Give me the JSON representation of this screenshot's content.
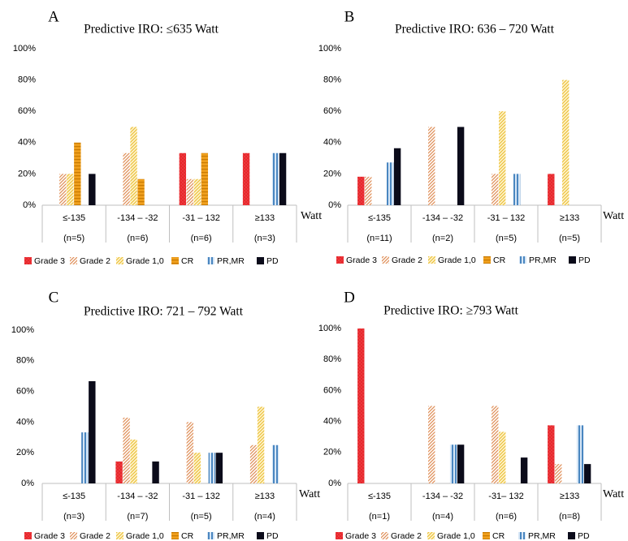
{
  "colors": {
    "grade3": "#e8262b",
    "grade2": "#e0905a",
    "grade10": "#ecc23c",
    "cr": "#f0a01e",
    "prmr": "#4a86c0",
    "pd": "#0b0b1a",
    "axis": "#bfbfbf",
    "text": "#000000"
  },
  "chart_data": [
    {
      "type": "bar",
      "panel_letter": "A",
      "title": "Predictive IRO: ≤635 Watt",
      "xunit": "Watt",
      "yticks": [
        "0%",
        "20%",
        "40%",
        "60%",
        "80%",
        "100%"
      ],
      "ylim": [
        0,
        100
      ],
      "categories": [
        "≤-135",
        "-134 – -32",
        "-31 – 132",
        "≥133"
      ],
      "n_labels": [
        "(n=5)",
        "(n=6)",
        "(n=6)",
        "(n=3)"
      ],
      "series": [
        {
          "name": "Grade 3",
          "values": [
            0,
            0,
            33.3,
            33.3
          ]
        },
        {
          "name": "Grade 2",
          "values": [
            20,
            33.3,
            16.7,
            0
          ]
        },
        {
          "name": "Grade 1,0",
          "values": [
            20,
            50,
            16.7,
            0
          ]
        },
        {
          "name": "CR",
          "values": [
            40,
            16.7,
            33.3,
            0
          ]
        },
        {
          "name": "PR,MR",
          "values": [
            0,
            0,
            0,
            33.3
          ]
        },
        {
          "name": "PD",
          "values": [
            20,
            0,
            0,
            33.3
          ]
        }
      ]
    },
    {
      "type": "bar",
      "panel_letter": "B",
      "title": "Predictive IRO: 636 – 720 Watt",
      "xunit": "Watt",
      "yticks": [
        "0%",
        "20%",
        "40%",
        "60%",
        "80%",
        "100%"
      ],
      "ylim": [
        0,
        100
      ],
      "categories": [
        "≤-135",
        "-134 – -32",
        "-31 – 132",
        "≥133"
      ],
      "n_labels": [
        "(n=11)",
        "(n=2)",
        "(n=5)",
        "(n=5)"
      ],
      "series": [
        {
          "name": "Grade 3",
          "values": [
            18.2,
            0,
            0,
            20
          ]
        },
        {
          "name": "Grade 2",
          "values": [
            18.2,
            50,
            20,
            0
          ]
        },
        {
          "name": "Grade 1,0",
          "values": [
            0,
            0,
            60,
            80
          ]
        },
        {
          "name": "CR",
          "values": [
            0,
            0,
            0,
            0
          ]
        },
        {
          "name": "PR,MR",
          "values": [
            27.3,
            0,
            20,
            0
          ]
        },
        {
          "name": "PD",
          "values": [
            36.4,
            50,
            0,
            0
          ]
        }
      ]
    },
    {
      "type": "bar",
      "panel_letter": "C",
      "title": "Predictive IRO: 721 – 792 Watt",
      "xunit": "Watt",
      "yticks": [
        "0%",
        "20%",
        "40%",
        "60%",
        "80%",
        "100%"
      ],
      "ylim": [
        0,
        100
      ],
      "categories": [
        "≤-135",
        "-134 – -32",
        "-31 – 132",
        "≥133"
      ],
      "n_labels": [
        "(n=3)",
        "(n=7)",
        "(n=5)",
        "(n=4)"
      ],
      "series": [
        {
          "name": "Grade 3",
          "values": [
            0,
            14.3,
            0,
            0
          ]
        },
        {
          "name": "Grade 2",
          "values": [
            0,
            42.9,
            40,
            25
          ]
        },
        {
          "name": "Grade 1,0",
          "values": [
            0,
            28.6,
            20,
            50
          ]
        },
        {
          "name": "CR",
          "values": [
            0,
            0,
            0,
            0
          ]
        },
        {
          "name": "PR,MR",
          "values": [
            33.3,
            0,
            20,
            25
          ]
        },
        {
          "name": "PD",
          "values": [
            66.7,
            14.3,
            20,
            0
          ]
        }
      ]
    },
    {
      "type": "bar",
      "panel_letter": "D",
      "title": "Predictive IRO: ≥793 Watt",
      "xunit": "Watt",
      "yticks": [
        "0%",
        "20%",
        "40%",
        "60%",
        "80%",
        "100%"
      ],
      "ylim": [
        0,
        100
      ],
      "categories": [
        "≤-135",
        "-134 – -32",
        "-31– 132",
        "≥133"
      ],
      "n_labels": [
        "(n=1)",
        "(n=4)",
        "(n=6)",
        "(n=8)"
      ],
      "series": [
        {
          "name": "Grade 3",
          "values": [
            100,
            0,
            0,
            37.5
          ]
        },
        {
          "name": "Grade 2",
          "values": [
            0,
            50,
            50,
            12.5
          ]
        },
        {
          "name": "Grade 1,0",
          "values": [
            0,
            0,
            33.3,
            0
          ]
        },
        {
          "name": "CR",
          "values": [
            0,
            0,
            0,
            0
          ]
        },
        {
          "name": "PR,MR",
          "values": [
            0,
            25,
            0,
            37.5
          ]
        },
        {
          "name": "PD",
          "values": [
            0,
            25,
            16.7,
            12.5
          ]
        }
      ]
    }
  ]
}
